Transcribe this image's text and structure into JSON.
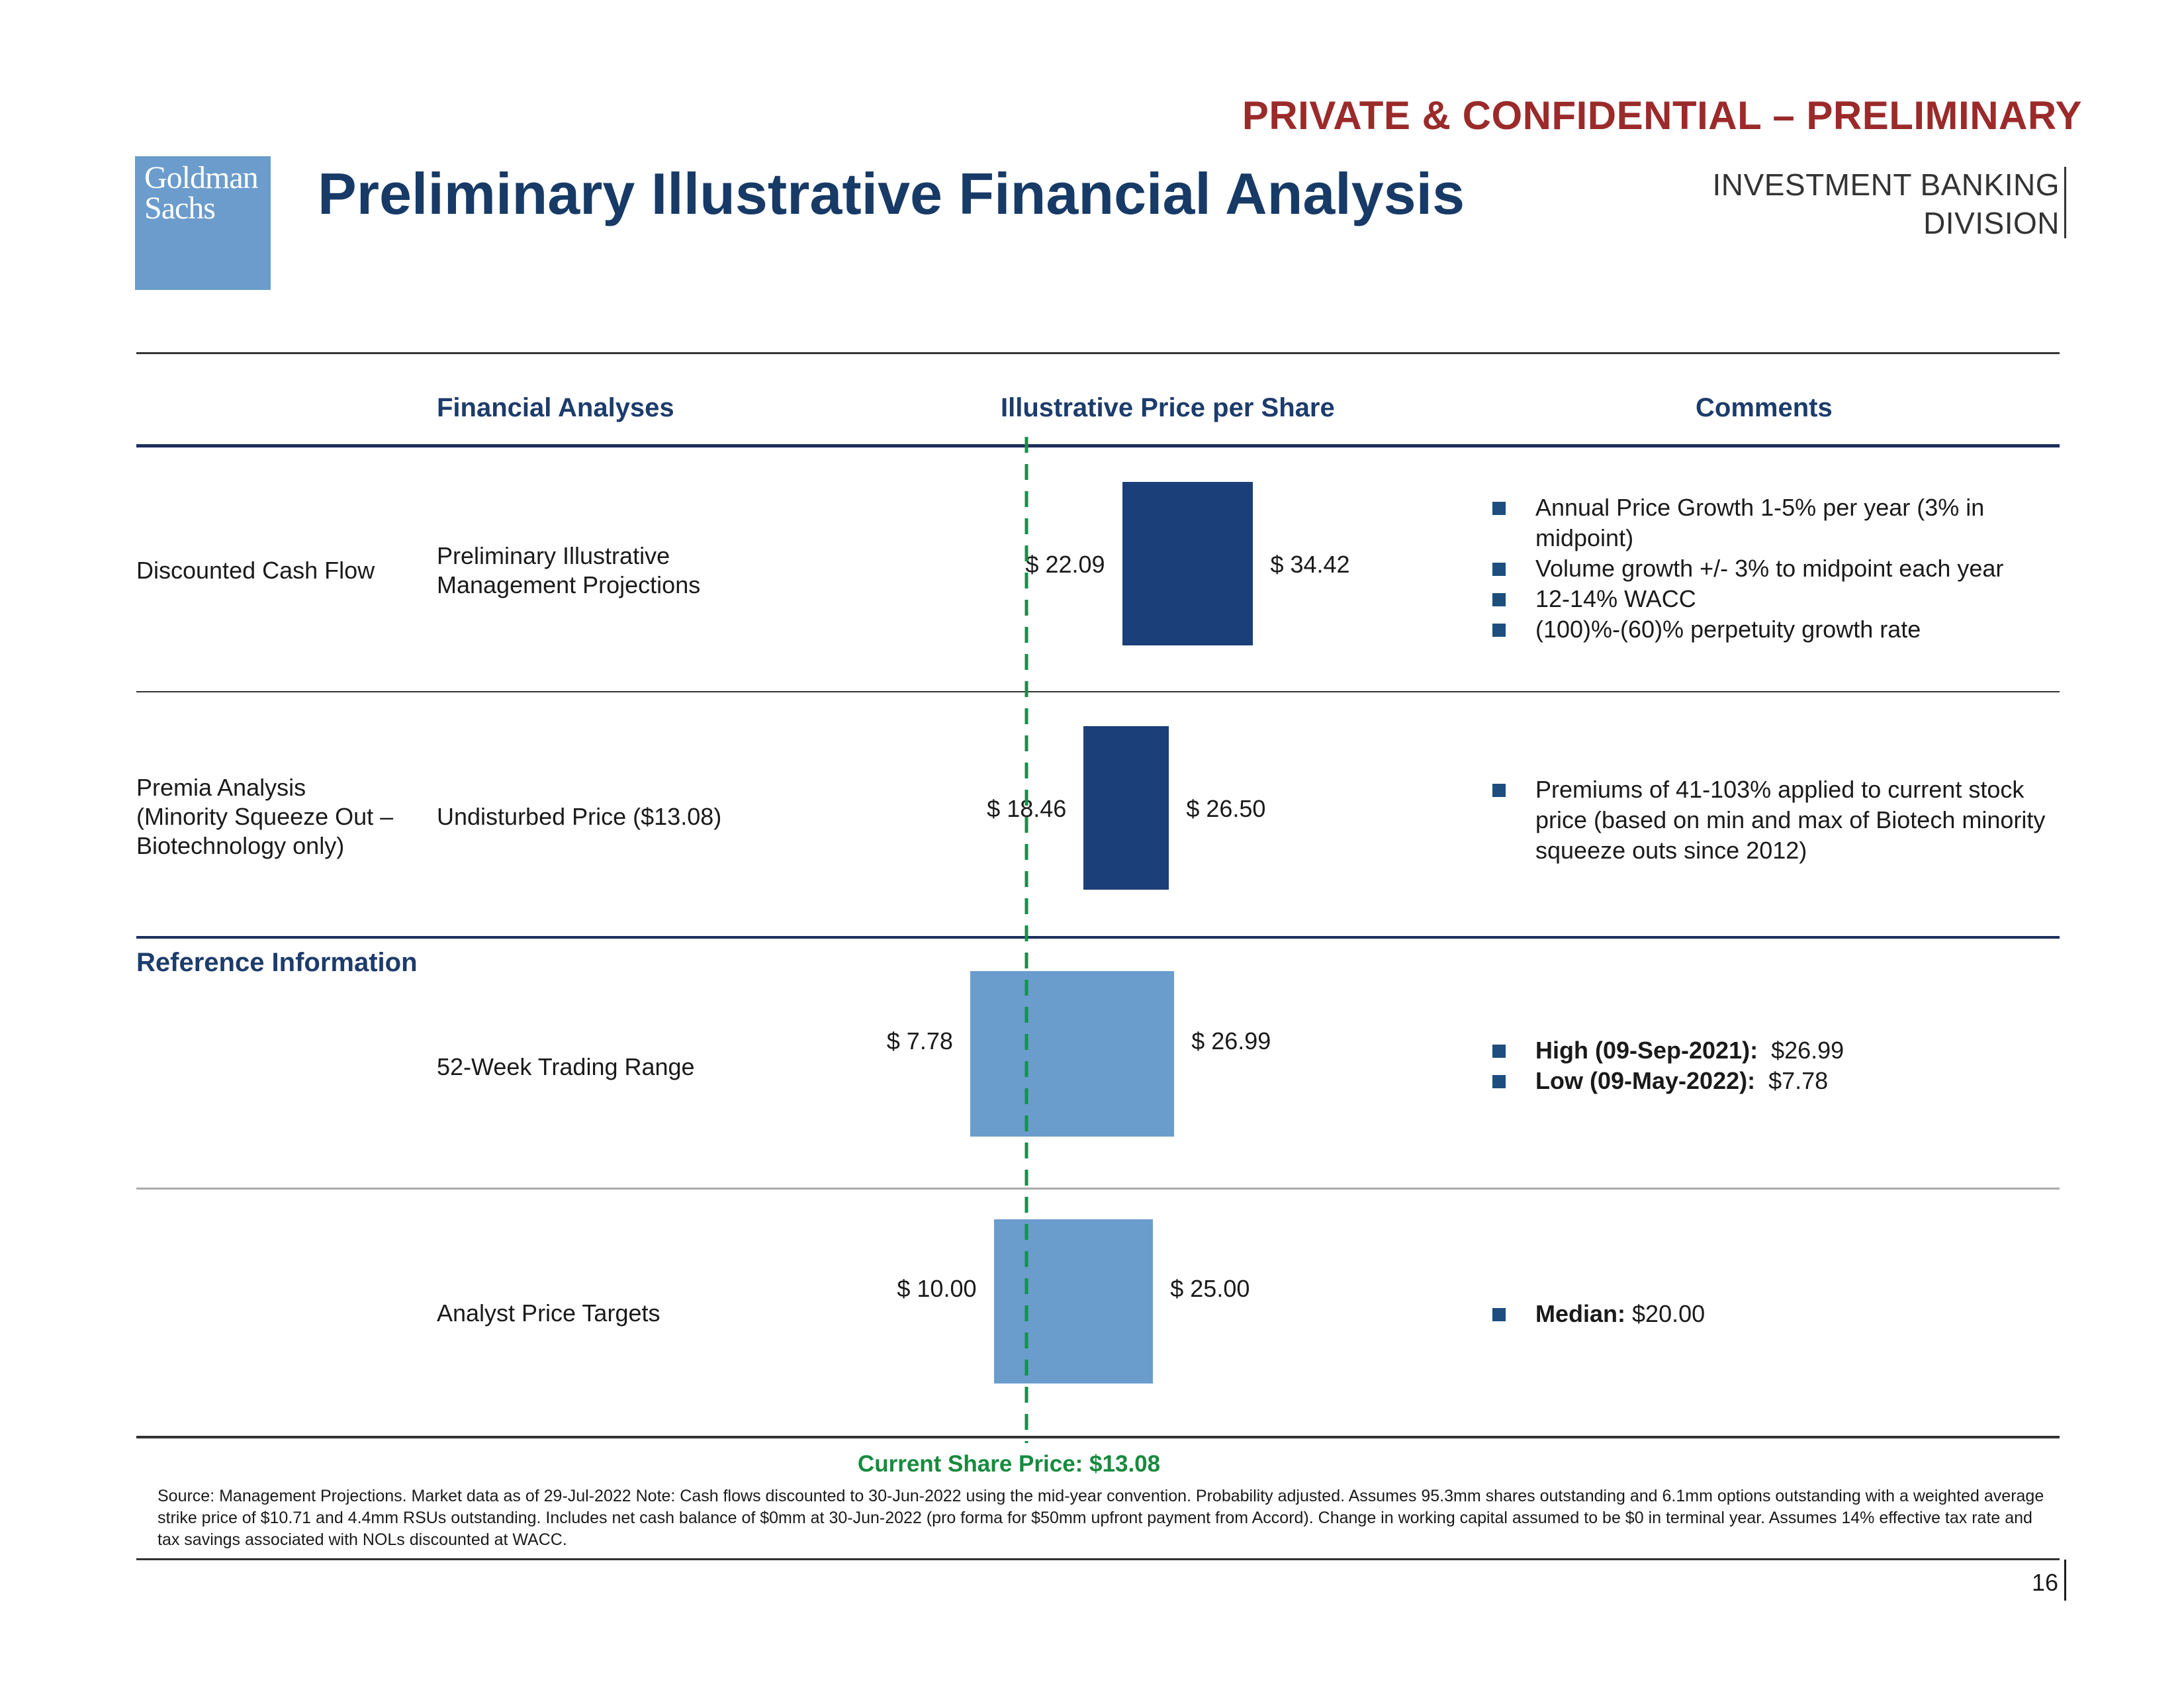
{
  "header": {
    "confidential": "PRIVATE & CONFIDENTIAL – PRELIMINARY",
    "logo_line1": "Goldman",
    "logo_line2": "Sachs",
    "title": "Preliminary Illustrative Financial Analysis",
    "division_line1": "INVESTMENT BANKING",
    "division_line2": "DIVISION"
  },
  "columns": {
    "analyses": "Financial Analyses",
    "price": "Illustrative Price per Share",
    "comments": "Comments"
  },
  "rows": [
    {
      "category": "Discounted Cash Flow",
      "analysis_line1": "Preliminary Illustrative",
      "analysis_line2": "Management Projections",
      "low_label": "$ 22.09",
      "high_label": "$ 34.42",
      "comments": [
        "Annual Price Growth 1-5% per year (3% in midpoint)",
        "Volume growth +/- 3% to midpoint each year",
        "12-14% WACC",
        "(100)%-(60)% perpetuity growth rate"
      ]
    },
    {
      "category_line1": "Premia Analysis",
      "category_line2": "(Minority Squeeze Out –",
      "category_line3": "Biotechnology only)",
      "analysis": "Undisturbed Price ($13.08)",
      "low_label": "$ 18.46",
      "high_label": "$ 26.50",
      "comments": [
        "Premiums of 41-103% applied to current stock price (based on min and max of Biotech minority squeeze outs since 2012)"
      ]
    }
  ],
  "reference": {
    "heading": "Reference Information",
    "rows": [
      {
        "analysis": "52-Week Trading Range",
        "low_label": "$ 7.78",
        "high_label": "$ 26.99",
        "comments": [
          {
            "bold": "High (09-Sep-2021):",
            "value": "$26.99"
          },
          {
            "bold": "Low (09-May-2022):",
            "value": "$7.78"
          }
        ]
      },
      {
        "analysis": "Analyst Price Targets",
        "low_label": "$ 10.00",
        "high_label": "$ 25.00",
        "comments": [
          {
            "bold": "Median:",
            "value": "$20.00"
          }
        ]
      }
    ]
  },
  "current_price_label": "Current Share Price: $13.08",
  "footnote": "Source: Management Projections. Market data as of 29-Jul-2022 Note: Cash flows discounted to 30-Jun-2022 using the mid-year convention. Probability adjusted. Assumes 95.3mm shares outstanding and 6.1mm options outstanding with a weighted average strike price of $10.71 and 4.4mm RSUs outstanding. Includes net cash balance of $0mm at 30-Jun-2022 (pro forma for $50mm upfront payment from Accord). Change in working capital assumed to be $0 in terminal year. Assumes 14% effective tax rate and tax savings associated with NOLs discounted at WACC.",
  "page_number": "16",
  "chart_data": {
    "type": "bar",
    "subtype": "football-field range bars",
    "title": "Illustrative Price per Share",
    "categories": [
      "Discounted Cash Flow",
      "Premia Analysis",
      "52-Week Trading Range",
      "Analyst Price Targets"
    ],
    "series": [
      {
        "name": "low",
        "values": [
          22.09,
          18.46,
          7.78,
          10.0
        ]
      },
      {
        "name": "high",
        "values": [
          34.42,
          26.5,
          26.99,
          25.0
        ]
      }
    ],
    "reference_line": {
      "name": "Current Share Price",
      "value": 13.08
    },
    "units": "$ per share",
    "colors": {
      "primary": "#1b3f78",
      "reference": "#6a9dcc",
      "current_line": "#12924a"
    }
  },
  "colors": {
    "title": "#173a66",
    "confidential": "#9b2a2a",
    "current_price": "#178a3e",
    "logo_bg": "#6b9ccc",
    "bullet": "#1d4e7e"
  }
}
